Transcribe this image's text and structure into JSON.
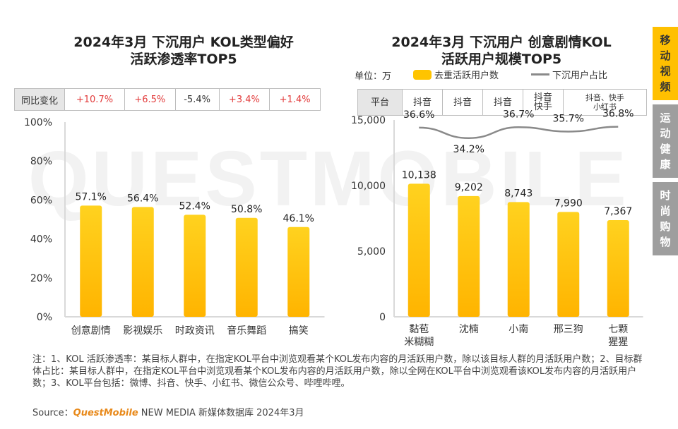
{
  "watermark": "QUESTMOBILE",
  "left_chart": {
    "title_line1": "2024年3月 下沉用户 KOL类型偏好",
    "title_line2": "活跃渗透率TOP5",
    "change_label": "同比变化",
    "changes": [
      "+10.7%",
      "+6.5%",
      "-5.4%",
      "+3.4%",
      "+1.4%"
    ]
  },
  "right_chart": {
    "title_line1": "2024年3月 下沉用户 创意剧情KOL",
    "title_line2": "活跃用户规模TOP5",
    "unit_label": "单位：万",
    "legend_bar": "去重活跃用户数",
    "legend_line": "下沉用户占比",
    "platform_label": "平台",
    "platforms": [
      {
        "line1": "抖音",
        "line2": "",
        "small": false
      },
      {
        "line1": "抖音",
        "line2": "",
        "small": false
      },
      {
        "line1": "抖音",
        "line2": "",
        "small": false
      },
      {
        "line1": "抖音",
        "line2": "快手",
        "small": false
      },
      {
        "line1": "抖音、快手",
        "line2": "小红书",
        "small": true
      }
    ]
  },
  "chart_data": [
    {
      "type": "bar",
      "title": "2024年3月 下沉用户 KOL类型偏好活跃渗透率TOP5",
      "categories": [
        "创意剧情",
        "影视娱乐",
        "时政资讯",
        "音乐舞蹈",
        "搞笑"
      ],
      "values": [
        57.1,
        56.4,
        52.4,
        50.8,
        46.1
      ],
      "value_labels": [
        "57.1%",
        "56.4%",
        "52.4%",
        "50.8%",
        "46.1%"
      ],
      "ylim": [
        0,
        100
      ],
      "yticks": [
        "0%",
        "20%",
        "40%",
        "60%",
        "80%",
        "100%"
      ],
      "color": "#ffc400"
    },
    {
      "type": "bar+line",
      "title": "2024年3月 下沉用户 创意剧情KOL活跃用户规模TOP5",
      "categories": [
        [
          "黏苞",
          "米糊糊"
        ],
        [
          "沈楠",
          ""
        ],
        [
          "小南",
          ""
        ],
        [
          "邢三狗",
          ""
        ],
        [
          "七颗",
          "猩猩"
        ]
      ],
      "series": [
        {
          "name": "去重活跃用户数",
          "values": [
            10138,
            9202,
            8743,
            7990,
            7367
          ],
          "value_labels": [
            "10,138",
            "9,202",
            "8,743",
            "7,990",
            "7,367"
          ],
          "color": "#ffc400"
        },
        {
          "name": "下沉用户占比",
          "values": [
            36.6,
            34.2,
            36.7,
            35.7,
            36.8
          ],
          "value_labels": [
            "36.6%",
            "34.2%",
            "36.7%",
            "35.7%",
            "36.8%"
          ],
          "color": "#8a8a8a"
        }
      ],
      "ylim": [
        0,
        15000
      ],
      "yticks": [
        "0",
        "5,000",
        "10,000",
        "15,000"
      ]
    }
  ],
  "sidebar": [
    {
      "label": "移动视频",
      "active": true
    },
    {
      "label": "运动健康",
      "active": false
    },
    {
      "label": "时尚购物",
      "active": false
    }
  ],
  "note": "注：1、KOL 活跃渗透率：某目标人群中，在指定KOL平台中浏览观看某个KOL发布内容的月活跃用户数，除以该目标人群的月活跃用户数；2、目标群体占比：某目标人群中，在指定KOL平台中浏览观看某个KOL发布内容的月活跃用户数，除以全网在KOL平台中浏览观看该KOL发布内容的月活跃用户数；3、KOL平台包括：微博、抖音、快手、小红书、微信公众号、哔哩哔哩。",
  "source": {
    "prefix": "Source：",
    "brand": "QuestMobile",
    "suffix": " NEW MEDIA 新媒体数据库 2024年3月"
  }
}
